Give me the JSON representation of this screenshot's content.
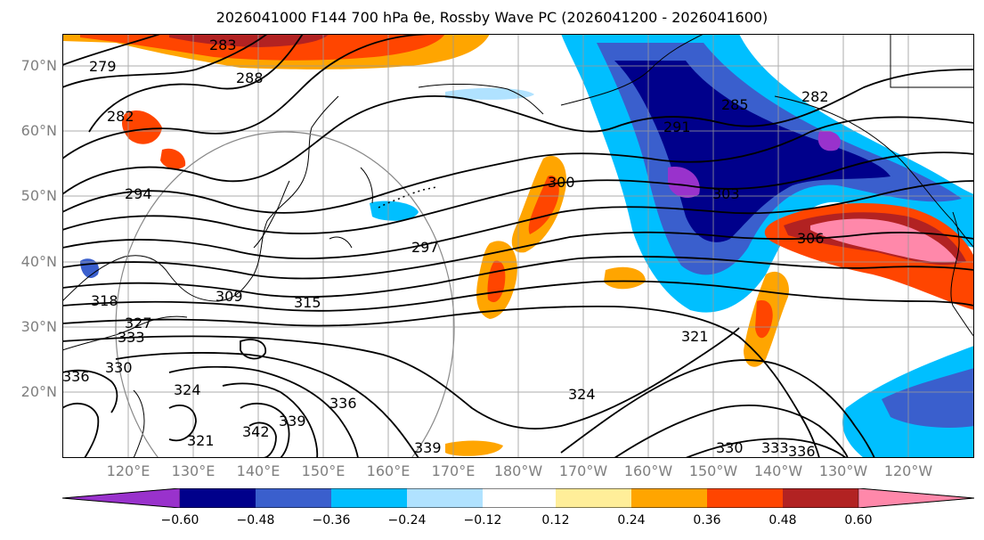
{
  "title": "2026041000 F144 700 hPa θe, Rossby Wave PC (2026041200 - 2026041600)",
  "map": {
    "lat_labels": [
      "70°N",
      "60°N",
      "50°N",
      "40°N",
      "30°N",
      "20°N"
    ],
    "lon_labels": [
      "120°E",
      "130°E",
      "140°E",
      "150°E",
      "160°E",
      "170°E",
      "180°W",
      "170°W",
      "160°W",
      "150°W",
      "140°W",
      "130°W",
      "120°W"
    ],
    "lat_range": [
      10,
      75
    ],
    "lon_range": [
      110,
      250
    ],
    "contour_labels": [
      "283",
      "279",
      "282",
      "288",
      "294",
      "297",
      "300",
      "291",
      "285",
      "282",
      "303",
      "306",
      "318",
      "309",
      "315",
      "333",
      "327",
      "330",
      "336",
      "324",
      "321",
      "324",
      "339",
      "342",
      "339",
      "336",
      "330",
      "333",
      "336",
      "321"
    ]
  },
  "colorbar": {
    "ticks": [
      "−0.60",
      "−0.48",
      "−0.36",
      "−0.24",
      "−0.12",
      "0.12",
      "0.24",
      "0.36",
      "0.48",
      "0.60"
    ],
    "colors": [
      "#9932cc",
      "#00008b",
      "#3a5fcd",
      "#00bfff",
      "#b0e2ff",
      "#ffffff",
      "#ffee99",
      "#ffa500",
      "#ff4500",
      "#b22222",
      "#ff88aa"
    ]
  }
}
